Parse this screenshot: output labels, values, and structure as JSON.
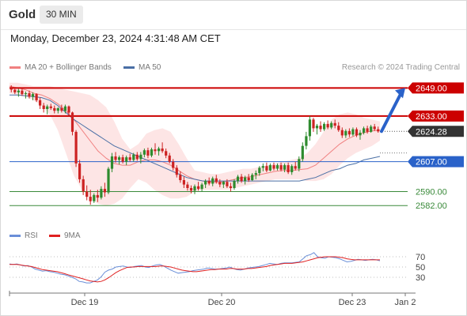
{
  "header": {
    "symbol": "Gold",
    "timeframe": "30 MIN"
  },
  "timestamp": "Monday, December 23, 2024 4:31:48 AM CET",
  "legend": {
    "ma20_bb": {
      "label": "MA 20 + Bollinger Bands",
      "color": "#f08080"
    },
    "ma50": {
      "label": "MA 50",
      "color": "#4a6fa5"
    },
    "rsi": {
      "label": "RSI",
      "color": "#6a8fd8"
    },
    "ma9": {
      "label": "9MA",
      "color": "#e02020"
    }
  },
  "copyright": "Research © 2024 Trading Central",
  "chart_data": {
    "type": "candlestick",
    "price_axis": {
      "ylim": [
        2574,
        2655
      ]
    },
    "levels": [
      {
        "price": 2649.0,
        "label": "2649.00",
        "style": "resistance",
        "color": "#cc0000"
      },
      {
        "price": 2633.0,
        "label": "2633.00",
        "style": "resistance",
        "color": "#cc0000"
      },
      {
        "price": 2624.28,
        "label": "2624.28",
        "style": "last",
        "color": "#333333"
      },
      {
        "price": 2607.0,
        "label": "2607.00",
        "style": "pivot",
        "color": "#2a62c9"
      },
      {
        "price": 2590.0,
        "label": "2590.00",
        "style": "support",
        "color": "#3a8a3a"
      },
      {
        "price": 2582.0,
        "label": "2582.00",
        "style": "support",
        "color": "#3a8a3a"
      }
    ],
    "forecast_arrow": {
      "from": 2624.28,
      "to": 2649.0,
      "color": "#2a62c9"
    },
    "x_ticks": [
      "Dec 19",
      "Dec 20",
      "Dec 23",
      "Jan 2"
    ],
    "rsi_ticks": [
      "70",
      "50",
      "30"
    ],
    "rsi_ylim": [
      10,
      90
    ],
    "bull_color": "#2e8b2e",
    "bear_color": "#cc2222",
    "candles": [
      [
        2648.5,
        2650.5,
        2646.5,
        2648.0
      ],
      [
        2648.0,
        2649.5,
        2645.5,
        2646.5
      ],
      [
        2646.5,
        2648.5,
        2644.0,
        2647.5
      ],
      [
        2647.5,
        2649.0,
        2644.5,
        2645.5
      ],
      [
        2645.5,
        2647.0,
        2643.0,
        2646.0
      ],
      [
        2646.0,
        2647.5,
        2643.0,
        2644.0
      ],
      [
        2644.0,
        2646.5,
        2642.0,
        2645.5
      ],
      [
        2645.5,
        2646.0,
        2641.0,
        2642.0
      ],
      [
        2642.0,
        2643.5,
        2637.0,
        2639.0
      ],
      [
        2639.0,
        2640.5,
        2635.0,
        2637.0
      ],
      [
        2637.0,
        2639.5,
        2634.0,
        2638.5
      ],
      [
        2638.5,
        2640.0,
        2636.5,
        2637.5
      ],
      [
        2637.5,
        2639.0,
        2634.5,
        2636.0
      ],
      [
        2636.0,
        2638.0,
        2634.5,
        2637.5
      ],
      [
        2637.5,
        2639.5,
        2635.0,
        2636.0
      ],
      [
        2636.0,
        2639.5,
        2634.5,
        2638.5
      ],
      [
        2638.5,
        2639.0,
        2633.5,
        2635.0
      ],
      [
        2635.0,
        2635.5,
        2622.0,
        2624.0
      ],
      [
        2624.0,
        2625.0,
        2604.0,
        2606.0
      ],
      [
        2606.0,
        2608.0,
        2595.0,
        2597.0
      ],
      [
        2597.0,
        2599.0,
        2588.0,
        2590.0
      ],
      [
        2590.0,
        2593.5,
        2585.0,
        2587.0
      ],
      [
        2587.0,
        2591.0,
        2582.5,
        2584.5
      ],
      [
        2584.5,
        2589.0,
        2583.5,
        2588.0
      ],
      [
        2588.0,
        2591.0,
        2584.0,
        2586.5
      ],
      [
        2586.5,
        2593.0,
        2585.5,
        2591.5
      ],
      [
        2591.5,
        2595.0,
        2587.0,
        2589.5
      ],
      [
        2589.5,
        2604.0,
        2588.5,
        2603.0
      ],
      [
        2603.0,
        2612.0,
        2601.0,
        2610.0
      ],
      [
        2610.0,
        2612.5,
        2606.5,
        2608.0
      ],
      [
        2608.0,
        2610.5,
        2605.5,
        2609.5
      ],
      [
        2609.5,
        2611.0,
        2606.0,
        2607.0
      ],
      [
        2607.0,
        2610.5,
        2605.0,
        2609.5
      ],
      [
        2609.5,
        2611.5,
        2607.0,
        2608.0
      ],
      [
        2608.0,
        2612.0,
        2607.0,
        2611.0
      ],
      [
        2611.0,
        2612.5,
        2607.5,
        2608.5
      ],
      [
        2608.5,
        2612.5,
        2606.0,
        2611.0
      ],
      [
        2611.0,
        2614.5,
        2609.5,
        2613.5
      ],
      [
        2613.5,
        2615.0,
        2609.0,
        2610.5
      ],
      [
        2610.5,
        2615.0,
        2609.5,
        2614.0
      ],
      [
        2614.0,
        2617.5,
        2611.0,
        2613.0
      ],
      [
        2613.0,
        2615.5,
        2610.5,
        2614.5
      ],
      [
        2614.5,
        2618.0,
        2612.0,
        2613.0
      ],
      [
        2613.0,
        2614.5,
        2609.0,
        2610.5
      ],
      [
        2610.5,
        2612.0,
        2606.0,
        2607.0
      ],
      [
        2607.0,
        2608.5,
        2602.0,
        2603.5
      ],
      [
        2603.5,
        2605.0,
        2598.0,
        2599.5
      ],
      [
        2599.5,
        2601.5,
        2595.0,
        2596.5
      ],
      [
        2596.5,
        2598.5,
        2592.0,
        2594.0
      ],
      [
        2594.0,
        2595.5,
        2590.5,
        2592.0
      ],
      [
        2592.0,
        2593.5,
        2589.0,
        2590.5
      ],
      [
        2590.5,
        2594.0,
        2588.5,
        2593.0
      ],
      [
        2593.0,
        2595.5,
        2590.5,
        2591.5
      ],
      [
        2591.5,
        2595.0,
        2590.0,
        2594.0
      ],
      [
        2594.0,
        2597.0,
        2592.0,
        2596.0
      ],
      [
        2596.0,
        2598.0,
        2593.5,
        2594.5
      ],
      [
        2594.5,
        2598.5,
        2593.0,
        2597.5
      ],
      [
        2597.5,
        2599.5,
        2594.5,
        2595.5
      ],
      [
        2595.5,
        2597.0,
        2592.5,
        2594.0
      ],
      [
        2594.0,
        2596.0,
        2592.0,
        2595.5
      ],
      [
        2595.5,
        2597.0,
        2592.0,
        2593.0
      ],
      [
        2593.0,
        2595.0,
        2590.0,
        2592.0
      ],
      [
        2592.0,
        2597.0,
        2591.0,
        2596.0
      ],
      [
        2596.0,
        2599.5,
        2594.5,
        2598.5
      ],
      [
        2598.5,
        2600.0,
        2595.0,
        2596.0
      ],
      [
        2596.0,
        2599.0,
        2594.0,
        2598.0
      ],
      [
        2598.0,
        2600.0,
        2595.5,
        2596.5
      ],
      [
        2596.5,
        2600.5,
        2596.0,
        2599.5
      ],
      [
        2599.5,
        2602.0,
        2597.0,
        2600.5
      ],
      [
        2600.5,
        2604.5,
        2599.0,
        2603.5
      ],
      [
        2603.5,
        2606.0,
        2601.5,
        2604.5
      ],
      [
        2604.5,
        2606.5,
        2601.0,
        2602.0
      ],
      [
        2602.0,
        2606.0,
        2601.5,
        2605.0
      ],
      [
        2605.0,
        2606.5,
        2602.0,
        2603.0
      ],
      [
        2603.0,
        2606.0,
        2602.0,
        2605.0
      ],
      [
        2605.0,
        2606.5,
        2601.5,
        2602.5
      ],
      [
        2602.5,
        2606.0,
        2601.0,
        2605.0
      ],
      [
        2605.0,
        2606.5,
        2600.0,
        2601.0
      ],
      [
        2601.0,
        2605.5,
        2599.5,
        2604.5
      ],
      [
        2604.5,
        2607.0,
        2602.0,
        2603.0
      ],
      [
        2603.0,
        2610.0,
        2601.5,
        2608.5
      ],
      [
        2608.5,
        2618.0,
        2607.0,
        2616.0
      ],
      [
        2616.0,
        2624.0,
        2614.0,
        2621.5
      ],
      [
        2621.5,
        2633.0,
        2619.0,
        2631.0
      ],
      [
        2631.0,
        2632.0,
        2624.0,
        2626.0
      ],
      [
        2626.0,
        2628.5,
        2622.5,
        2627.5
      ],
      [
        2627.5,
        2630.0,
        2624.0,
        2625.5
      ],
      [
        2625.5,
        2629.5,
        2624.5,
        2628.5
      ],
      [
        2628.5,
        2630.5,
        2625.5,
        2626.5
      ],
      [
        2626.5,
        2630.0,
        2625.5,
        2629.0
      ],
      [
        2629.0,
        2631.0,
        2626.0,
        2627.5
      ],
      [
        2627.5,
        2629.5,
        2624.0,
        2625.0
      ],
      [
        2625.0,
        2626.5,
        2620.5,
        2622.0
      ],
      [
        2622.0,
        2625.5,
        2620.5,
        2624.5
      ],
      [
        2624.5,
        2626.0,
        2621.0,
        2622.5
      ],
      [
        2622.5,
        2626.5,
        2621.5,
        2625.5
      ],
      [
        2625.5,
        2626.5,
        2621.0,
        2622.0
      ],
      [
        2622.0,
        2625.0,
        2619.5,
        2623.5
      ],
      [
        2623.5,
        2627.0,
        2622.5,
        2626.0
      ],
      [
        2626.0,
        2627.5,
        2623.0,
        2624.0
      ],
      [
        2624.0,
        2628.0,
        2623.5,
        2627.0
      ],
      [
        2627.0,
        2628.5,
        2624.5,
        2625.5
      ],
      [
        2625.5,
        2627.0,
        2623.5,
        2624.28
      ]
    ],
    "ma20": [
      2650,
      2649,
      2648,
      2646,
      2645,
      2643,
      2640,
      2636,
      2631,
      2625,
      2619,
      2613,
      2609,
      2606,
      2605,
      2605,
      2607,
      2608,
      2608,
      2607,
      2605,
      2602,
      2599,
      2597,
      2596,
      2595.5,
      2595,
      2596,
      2597,
      2598,
      2598.5,
      2599.5,
      2600.5,
      2601.5,
      2602,
      2602,
      2602.5,
      2603,
      2605,
      2609,
      2613,
      2617,
      2620,
      2622,
      2623.5,
      2624.5,
      2625
    ],
    "bb_upper": [
      2652,
      2652,
      2651,
      2650,
      2650,
      2650,
      2649,
      2648,
      2647,
      2646,
      2645,
      2642,
      2638,
      2630,
      2620,
      2614,
      2617,
      2623,
      2625,
      2626,
      2624,
      2617,
      2609,
      2602,
      2601,
      2600,
      2600,
      2601,
      2602,
      2603,
      2603,
      2604,
      2605,
      2606,
      2607,
      2608,
      2609,
      2612,
      2617,
      2624,
      2631,
      2634,
      2635,
      2634,
      2632,
      2631,
      2630
    ],
    "bb_lower": [
      2646,
      2645,
      2644,
      2642,
      2639,
      2634,
      2625,
      2612,
      2599,
      2591,
      2586,
      2583,
      2582,
      2583,
      2586,
      2592,
      2597,
      2595,
      2591,
      2588,
      2586,
      2586,
      2587,
      2590,
      2591,
      2591,
      2591,
      2591,
      2592,
      2593,
      2594,
      2595,
      2596,
      2597,
      2597,
      2597,
      2597,
      2596,
      2596,
      2597,
      2600,
      2605,
      2609,
      2612,
      2614,
      2616,
      2619
    ],
    "ma50": [
      2645,
      2645,
      2644.5,
      2644,
      2643.5,
      2642,
      2639,
      2635,
      2631,
      2628,
      2625,
      2622,
      2619,
      2616,
      2614,
      2612,
      2610,
      2608,
      2606,
      2604,
      2602,
      2600,
      2598,
      2597,
      2596,
      2596,
      2596,
      2596,
      2596,
      2596,
      2596,
      2596,
      2596,
      2596,
      2596,
      2596,
      2596,
      2597,
      2598,
      2600,
      2602,
      2603,
      2605,
      2606,
      2608,
      2609,
      2610
    ],
    "rsi": [
      56,
      55,
      56,
      54,
      52,
      53,
      50,
      46,
      44,
      42,
      43,
      41,
      40,
      38,
      36,
      35,
      33,
      30,
      27,
      22,
      21,
      19,
      19,
      22,
      25,
      31,
      40,
      44,
      46,
      50,
      51,
      52,
      50,
      49,
      51,
      52,
      53,
      50,
      49,
      52,
      54,
      55,
      52,
      48,
      44,
      41,
      38,
      39,
      40,
      41,
      43,
      44,
      45,
      46,
      48,
      47,
      46,
      46,
      47,
      48,
      50,
      47,
      45,
      44,
      46,
      48,
      49,
      50,
      51,
      53,
      55,
      57,
      56,
      55,
      57,
      58,
      58,
      58,
      59,
      60,
      66,
      72,
      74,
      78,
      70,
      68,
      67,
      70,
      69,
      68,
      66,
      63,
      60,
      61,
      63,
      65,
      64,
      63,
      64,
      65,
      64,
      62
    ],
    "rsi_ma": [
      55,
      55,
      55,
      54,
      53,
      52,
      51,
      49,
      47,
      45,
      44,
      43,
      42,
      41,
      39,
      37,
      35,
      33,
      31,
      29,
      27,
      25,
      23,
      22,
      21,
      22,
      25,
      29,
      34,
      39,
      43,
      46,
      49,
      50,
      50,
      51,
      51,
      51,
      51,
      51,
      51,
      52,
      52,
      51,
      50,
      48,
      46,
      44,
      43,
      42,
      41,
      41,
      42,
      43,
      44,
      45,
      45,
      46,
      46,
      46,
      47,
      47,
      46,
      46,
      46,
      47,
      47,
      48,
      49,
      50,
      51,
      53,
      54,
      55,
      56,
      57,
      57,
      57,
      58,
      59,
      60,
      62,
      64,
      66,
      68,
      69,
      70,
      70,
      70,
      70,
      69,
      68,
      66,
      65,
      64,
      64,
      64,
      64,
      64,
      64,
      64,
      64
    ]
  }
}
